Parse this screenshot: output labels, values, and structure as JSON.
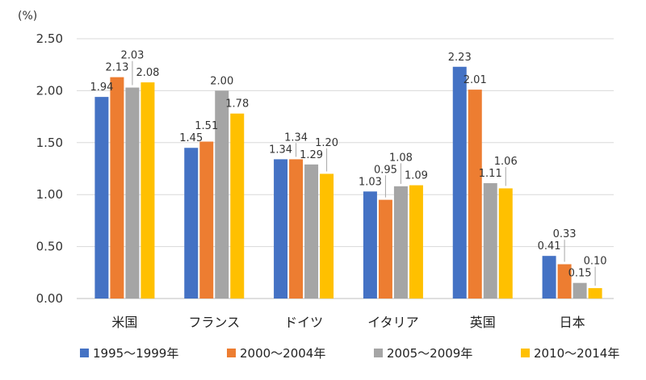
{
  "chart_data": {
    "type": "bar",
    "unit_label": "(%)",
    "categories": [
      "米国",
      "フランス",
      "ドイツ",
      "イタリア",
      "英国",
      "日本"
    ],
    "series": [
      {
        "name": "1995～1999年",
        "color": "#4472C4",
        "values": [
          1.94,
          1.45,
          1.34,
          1.03,
          2.23,
          0.41
        ]
      },
      {
        "name": "2000～2004年",
        "color": "#ED7D31",
        "values": [
          2.13,
          1.51,
          1.34,
          0.95,
          2.01,
          0.33
        ]
      },
      {
        "name": "2005～2009年",
        "color": "#A5A5A5",
        "values": [
          2.03,
          2.0,
          1.29,
          1.08,
          1.11,
          0.15
        ]
      },
      {
        "name": "2010～2014年",
        "color": "#FFC000",
        "values": [
          2.08,
          1.78,
          1.2,
          1.09,
          1.06,
          0.1
        ]
      }
    ],
    "value_labels": [
      [
        "1.94",
        "1.45",
        "1.34",
        "1.03",
        "2.23",
        "0.41"
      ],
      [
        "2.13",
        "1.51",
        "1.34",
        "0.95",
        "2.01",
        "0.33"
      ],
      [
        "2.03",
        "2.00",
        "1.29",
        "1.08",
        "1.11",
        "0.15"
      ],
      [
        "2.08",
        "1.78",
        "1.20",
        "1.09",
        "1.06",
        "0.10"
      ]
    ],
    "yticks": [
      "0.00",
      "0.50",
      "1.00",
      "1.50",
      "2.00",
      "2.50"
    ],
    "ylim": [
      0,
      2.5
    ],
    "grid": true,
    "legend_position": "bottom"
  }
}
